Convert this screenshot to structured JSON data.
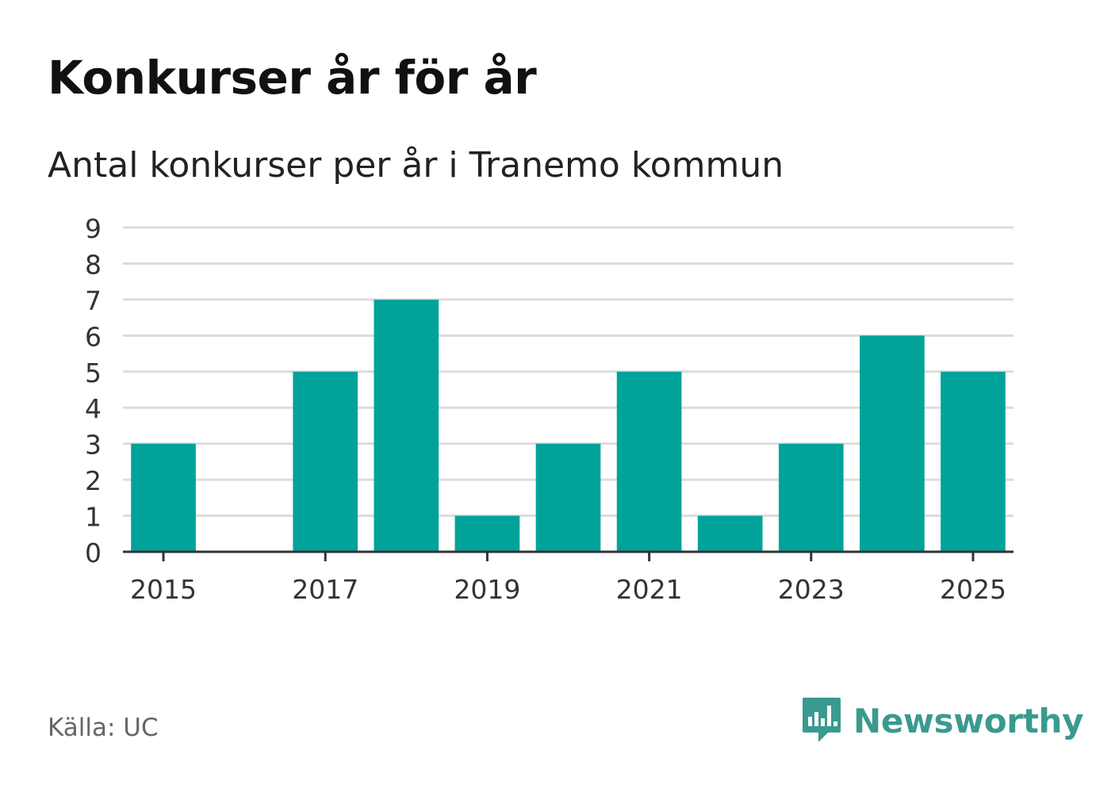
{
  "header": {
    "title": "Konkurser år för år",
    "subtitle": "Antal konkurser per år i Tranemo kommun"
  },
  "footer": {
    "source": "Källa: UC",
    "brand": "Newsworthy",
    "brand_icon": "bar-chart-speech-bubble-icon"
  },
  "colors": {
    "bar": "#00a39a",
    "grid": "#dcdcdc",
    "axis": "#333333",
    "brand": "#3a9a90"
  },
  "chart_data": {
    "type": "bar",
    "x": [
      2015,
      2016,
      2017,
      2018,
      2019,
      2020,
      2021,
      2022,
      2023,
      2024,
      2025
    ],
    "values": [
      3,
      0,
      5,
      7,
      1,
      3,
      5,
      1,
      3,
      6,
      5
    ],
    "x_tick_labels": [
      "2015",
      "2017",
      "2019",
      "2021",
      "2023",
      "2025"
    ],
    "y_tick_labels": [
      "0",
      "1",
      "2",
      "3",
      "4",
      "5",
      "6",
      "7",
      "8",
      "9"
    ],
    "ylim": [
      0,
      9
    ],
    "grid": true,
    "legend": "none"
  }
}
